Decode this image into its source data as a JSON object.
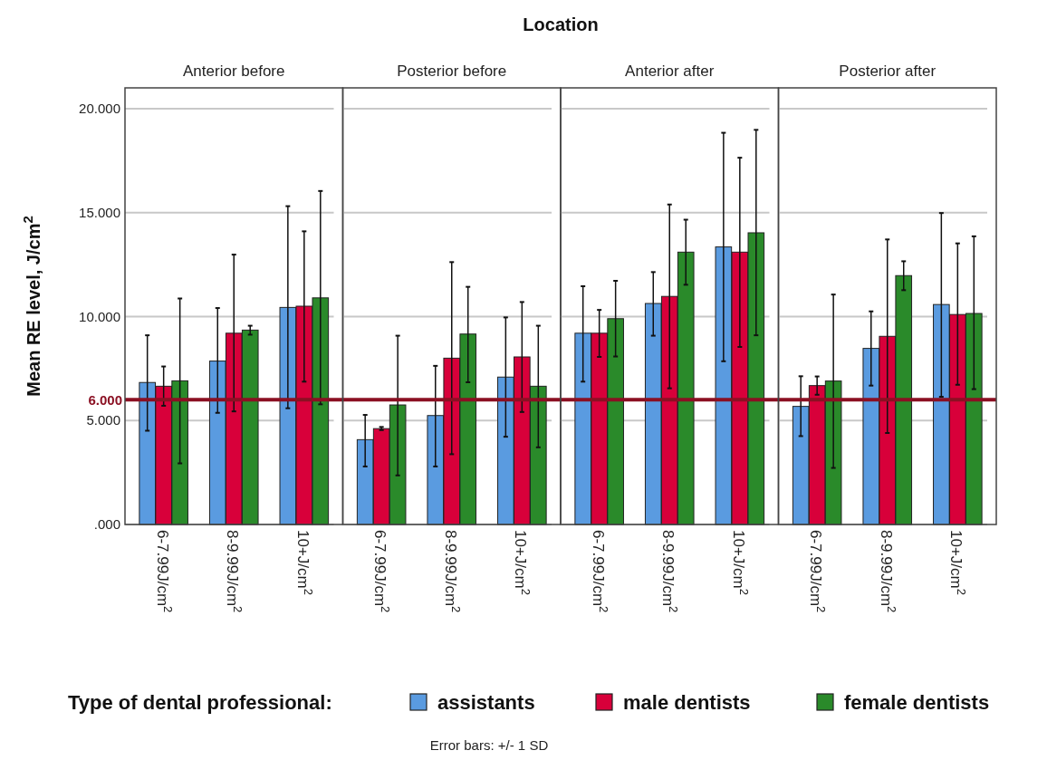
{
  "chart_data": [
    {
      "type": "bar",
      "title": "Anterior before",
      "ylabel": "Mean RE level, J/cm$^{2}$",
      "legend_title": "Type of dental professional:",
      "annotations": [
        "Location",
        "Error bars: +/- 1 SD"
      ],
      "categories": [
        "6-7.99J/cm$^{2}$",
        "8-9.99J/cm$^{2}$",
        "10+J/cm$^{2}$"
      ],
      "series": [
        {
          "name": "assistants",
          "color": "#5a9be0",
          "values": [
            6.83,
            7.86,
            10.44
          ],
          "errors": [
            [
              4.51,
              9.1
            ],
            [
              5.37,
              10.41
            ],
            [
              5.59,
              15.31
            ]
          ]
        },
        {
          "name": "male dentists",
          "color": "#d8003a",
          "values": [
            6.65,
            9.2,
            10.5
          ],
          "errors": [
            [
              5.71,
              7.6
            ],
            [
              5.44,
              12.98
            ],
            [
              6.87,
              14.1
            ]
          ]
        },
        {
          "name": "female dentists",
          "color": "#2a8a2a",
          "values": [
            6.91,
            9.35,
            10.9
          ],
          "errors": [
            [
              2.94,
              10.87
            ],
            [
              9.13,
              9.56
            ],
            [
              5.78,
              16.04
            ]
          ]
        }
      ],
      "ylim": [
        0,
        21
      ],
      "yticks": [
        {
          "value": 0,
          "label": ".000"
        },
        {
          "value": 5,
          "label": "5.000"
        },
        {
          "value": 10,
          "label": "10.000"
        },
        {
          "value": 15,
          "label": "15.000"
        },
        {
          "value": 20,
          "label": "20.000"
        }
      ],
      "grid": "y",
      "legend": "bottom",
      "ref_lines": [
        {
          "axis": "y",
          "value": 6,
          "label": "6.000",
          "color": "#8b1023"
        }
      ]
    },
    {
      "type": "bar",
      "title": "Posterior before",
      "tick_labels": "x",
      "categories": [
        "6-7.99J/cm$^{2}$",
        "8-9.99J/cm$^{2}$",
        "10+J/cm$^{2}$"
      ],
      "series": [
        {
          "color": "#5a9be0",
          "values": [
            4.08,
            5.24,
            7.09
          ],
          "errors": [
            [
              2.79,
              5.27
            ],
            [
              2.79,
              7.63
            ],
            [
              4.22,
              9.96
            ]
          ]
        },
        {
          "color": "#d8003a",
          "values": [
            4.61,
            8.0,
            8.06
          ],
          "errors": [
            [
              4.54,
              4.69
            ],
            [
              3.38,
              12.62
            ],
            [
              5.41,
              10.7
            ]
          ]
        },
        {
          "color": "#2a8a2a",
          "values": [
            5.75,
            9.16,
            6.65
          ],
          "errors": [
            [
              2.36,
              9.08
            ],
            [
              6.84,
              11.43
            ],
            [
              3.71,
              9.56
            ]
          ]
        }
      ],
      "ylim": [
        0,
        21
      ],
      "yticks": [
        0,
        5,
        10,
        15,
        20
      ],
      "grid": "y",
      "ref_lines": [
        {
          "axis": "y",
          "value": 6,
          "color": "#8b1023"
        }
      ]
    },
    {
      "type": "bar",
      "title": "Anterior after",
      "tick_labels": "x",
      "categories": [
        "6-7.99J/cm$^{2}$",
        "8-9.99J/cm$^{2}$",
        "10+J/cm$^{2}$"
      ],
      "series": [
        {
          "color": "#5a9be0",
          "values": [
            9.2,
            10.63,
            13.35
          ],
          "errors": [
            [
              6.87,
              11.46
            ],
            [
              9.08,
              12.14
            ],
            [
              7.85,
              18.84
            ]
          ]
        },
        {
          "color": "#d8003a",
          "values": [
            9.2,
            10.97,
            13.1
          ],
          "errors": [
            [
              8.06,
              10.32
            ],
            [
              6.55,
              15.39
            ],
            [
              8.54,
              17.64
            ]
          ]
        },
        {
          "color": "#2a8a2a",
          "values": [
            9.9,
            13.1,
            14.03
          ],
          "errors": [
            [
              8.08,
              11.72
            ],
            [
              11.53,
              14.66
            ],
            [
              9.1,
              18.98
            ]
          ]
        }
      ],
      "ylim": [
        0,
        21
      ],
      "yticks": [
        0,
        5,
        10,
        15,
        20
      ],
      "grid": "y",
      "ref_lines": [
        {
          "axis": "y",
          "value": 6,
          "color": "#8b1023"
        }
      ]
    },
    {
      "type": "bar",
      "title": "Posterior after",
      "tick_labels": "x",
      "categories": [
        "6-7.99J/cm$^{2}$",
        "8-9.99J/cm$^{2}$",
        "10+J/cm$^{2}$"
      ],
      "series": [
        {
          "color": "#5a9be0",
          "values": [
            5.68,
            8.47,
            10.58
          ],
          "errors": [
            [
              4.25,
              7.13
            ],
            [
              6.68,
              10.25
            ],
            [
              6.14,
              14.98
            ]
          ]
        },
        {
          "color": "#d8003a",
          "values": [
            6.68,
            9.05,
            10.1
          ],
          "errors": [
            [
              6.24,
              7.12
            ],
            [
              4.4,
              13.71
            ],
            [
              6.72,
              13.52
            ]
          ]
        },
        {
          "color": "#2a8a2a",
          "values": [
            6.9,
            11.97,
            10.15
          ],
          "errors": [
            [
              2.72,
              11.06
            ],
            [
              11.27,
              12.66
            ],
            [
              6.51,
              13.86
            ]
          ]
        }
      ],
      "ylim": [
        0,
        21
      ],
      "yticks": [
        0,
        5,
        10,
        15,
        20
      ],
      "grid": "y",
      "ref_lines": [
        {
          "axis": "y",
          "value": 6,
          "color": "#8b1023"
        }
      ]
    }
  ]
}
